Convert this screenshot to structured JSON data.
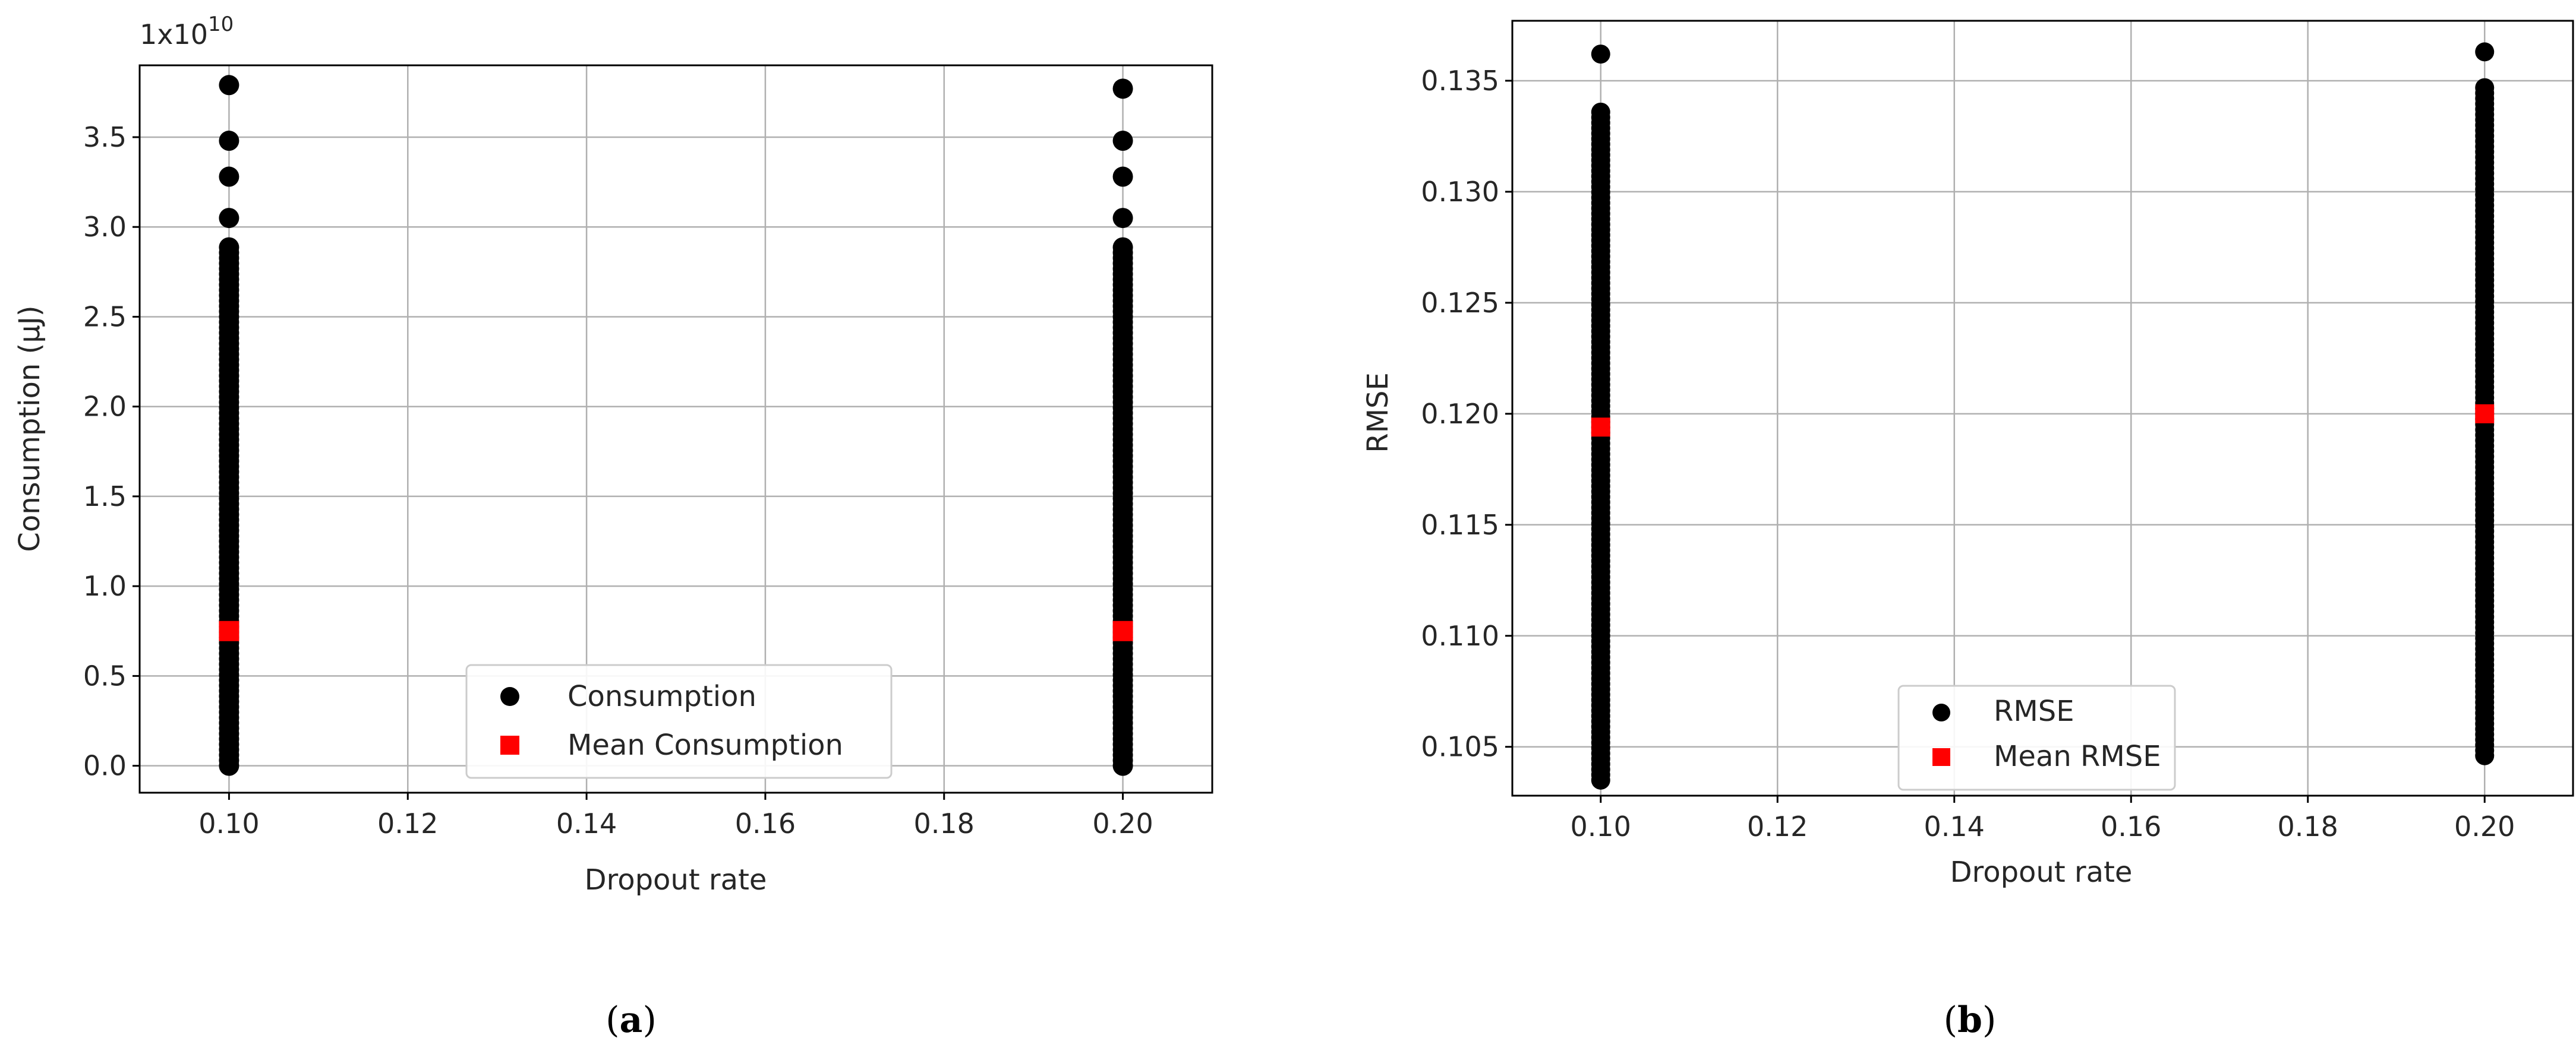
{
  "chart_data": [
    {
      "type": "scatter",
      "panel_label": "a",
      "xlabel": "Dropout rate",
      "ylabel": "Consumption (µJ)",
      "y_multiplier": "1x10",
      "y_multiplier_exp": "10",
      "xlim": [
        0.09,
        0.21
      ],
      "ylim": [
        -0.15,
        3.9
      ],
      "x_ticks": [
        0.1,
        0.12,
        0.14,
        0.16,
        0.18,
        0.2
      ],
      "x_tick_labels": [
        "0.10",
        "0.12",
        "0.14",
        "0.16",
        "0.18",
        "0.20"
      ],
      "y_ticks": [
        0.0,
        0.5,
        1.0,
        1.5,
        2.0,
        2.5,
        3.0,
        3.5
      ],
      "y_tick_labels": [
        "0.0",
        "0.5",
        "1.0",
        "1.5",
        "2.0",
        "2.5",
        "3.0",
        "3.5"
      ],
      "grid": true,
      "legend_placement": "lower-center",
      "series": [
        {
          "name": "Consumption",
          "marker": "circle",
          "color": "#000000",
          "columns": [
            {
              "x": 0.1,
              "y_min": 0.0,
              "y_max": 2.9,
              "outliers": [
                3.05,
                3.28,
                3.48,
                3.79
              ]
            },
            {
              "x": 0.2,
              "y_min": 0.0,
              "y_max": 2.9,
              "outliers": [
                3.05,
                3.28,
                3.48,
                3.77
              ]
            }
          ]
        },
        {
          "name": "Mean Consumption",
          "marker": "square",
          "color": "#ff0000",
          "points": [
            {
              "x": 0.1,
              "y": 0.75
            },
            {
              "x": 0.2,
              "y": 0.75
            }
          ]
        }
      ]
    },
    {
      "type": "scatter",
      "panel_label": "b",
      "xlabel": "Dropout rate",
      "ylabel": "RMSE",
      "xlim": [
        0.09,
        0.21
      ],
      "ylim": [
        0.1028,
        0.1377
      ],
      "x_ticks": [
        0.1,
        0.12,
        0.14,
        0.16,
        0.18,
        0.2
      ],
      "x_tick_labels": [
        "0.10",
        "0.12",
        "0.14",
        "0.16",
        "0.18",
        "0.20"
      ],
      "y_ticks": [
        0.105,
        0.11,
        0.115,
        0.12,
        0.125,
        0.13,
        0.135
      ],
      "y_tick_labels": [
        "0.105",
        "0.110",
        "0.115",
        "0.120",
        "0.125",
        "0.130",
        "0.135"
      ],
      "grid": true,
      "legend_placement": "lower-center",
      "series": [
        {
          "name": "RMSE",
          "marker": "circle",
          "color": "#000000",
          "columns": [
            {
              "x": 0.1,
              "y_min": 0.1035,
              "y_max": 0.1338,
              "outliers": [
                0.1362
              ]
            },
            {
              "x": 0.2,
              "y_min": 0.1046,
              "y_max": 0.1347,
              "outliers": [
                0.1363
              ]
            }
          ]
        },
        {
          "name": "Mean RMSE",
          "marker": "square",
          "color": "#ff0000",
          "points": [
            {
              "x": 0.1,
              "y": 0.1194
            },
            {
              "x": 0.2,
              "y": 0.12
            }
          ]
        }
      ]
    }
  ]
}
